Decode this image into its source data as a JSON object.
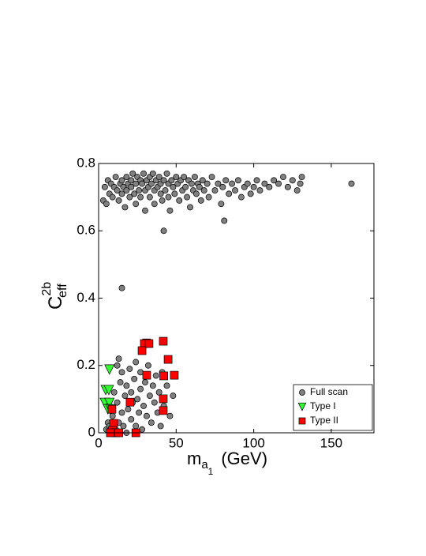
{
  "chart_data": {
    "type": "scatter",
    "xlabel": {
      "base": "m",
      "sub": "a",
      "subsub": "1",
      "unit": "(GeV)"
    },
    "ylabel": {
      "base": "C",
      "sup": "2b",
      "sub": "eff"
    },
    "xlim": [
      0,
      177.5
    ],
    "ylim": [
      0,
      0.8
    ],
    "xticks": [
      0,
      50,
      100,
      150
    ],
    "yticks": [
      0,
      0.2,
      0.4,
      0.6,
      0.8
    ],
    "legend": "lower right",
    "series": [
      {
        "name": "Full scan",
        "color": "#808080",
        "marker": "circle",
        "x": [
          3,
          4,
          5,
          6,
          7,
          8,
          9,
          10,
          11,
          12,
          13,
          14,
          15,
          15,
          16,
          17,
          18,
          18,
          19,
          20,
          21,
          21,
          22,
          23,
          24,
          24,
          25,
          26,
          27,
          27,
          28,
          29,
          30,
          30,
          31,
          32,
          33,
          33,
          34,
          35,
          36,
          36,
          37,
          38,
          39,
          40,
          40,
          41,
          42,
          43,
          44,
          45,
          45,
          46,
          47,
          48,
          49,
          50,
          51,
          52,
          53,
          54,
          55,
          56,
          57,
          58,
          59,
          60,
          61,
          62,
          63,
          64,
          65,
          66,
          67,
          68,
          70,
          71,
          73,
          75,
          77,
          79,
          80,
          81,
          82,
          84,
          86,
          88,
          90,
          92,
          94,
          96,
          98,
          100,
          102,
          104,
          107,
          110,
          113,
          116,
          119,
          122,
          125,
          128,
          130,
          131,
          163,
          42,
          15,
          5,
          6,
          7,
          8,
          9,
          10,
          11,
          12,
          12,
          13,
          14,
          15,
          15,
          16,
          17,
          18,
          18,
          19,
          20,
          21,
          21,
          22,
          23,
          24,
          24,
          25,
          26,
          27,
          27,
          28,
          29,
          30,
          31,
          32,
          33,
          34,
          35,
          36,
          37,
          38,
          39,
          40,
          41,
          42,
          44,
          46,
          48,
          13,
          10,
          14
        ],
        "values": [
          0.69,
          0.73,
          0.68,
          0.75,
          0.71,
          0.74,
          0.7,
          0.73,
          0.76,
          0.72,
          0.69,
          0.74,
          0.75,
          0.71,
          0.73,
          0.67,
          0.76,
          0.72,
          0.74,
          0.7,
          0.75,
          0.73,
          0.77,
          0.71,
          0.74,
          0.68,
          0.76,
          0.72,
          0.75,
          0.7,
          0.74,
          0.77,
          0.72,
          0.66,
          0.75,
          0.73,
          0.76,
          0.7,
          0.74,
          0.77,
          0.72,
          0.68,
          0.75,
          0.73,
          0.76,
          0.71,
          0.74,
          0.69,
          0.75,
          0.72,
          0.77,
          0.74,
          0.7,
          0.66,
          0.75,
          0.73,
          0.71,
          0.76,
          0.74,
          0.69,
          0.75,
          0.72,
          0.76,
          0.73,
          0.7,
          0.75,
          0.67,
          0.74,
          0.72,
          0.76,
          0.71,
          0.74,
          0.73,
          0.69,
          0.75,
          0.72,
          0.74,
          0.7,
          0.76,
          0.72,
          0.74,
          0.68,
          0.73,
          0.63,
          0.75,
          0.71,
          0.74,
          0.72,
          0.75,
          0.7,
          0.73,
          0.74,
          0.71,
          0.73,
          0.75,
          0.72,
          0.74,
          0.73,
          0.75,
          0.74,
          0.76,
          0.73,
          0.75,
          0.72,
          0.74,
          0.76,
          0.74,
          0.6,
          0.43,
          0.01,
          0.03,
          0.02,
          0.0,
          0.05,
          0.12,
          0.01,
          0.09,
          0.2,
          0.03,
          0.15,
          0.06,
          0.18,
          0.02,
          0.11,
          0.0,
          0.14,
          0.07,
          0.19,
          0.04,
          0.12,
          0.09,
          0.16,
          0.02,
          0.21,
          0.1,
          0.06,
          0.13,
          0.18,
          0.01,
          0.08,
          0.15,
          0.05,
          0.2,
          0.11,
          0.03,
          0.14,
          0.09,
          0.17,
          0.06,
          0.12,
          0.02,
          0.18,
          0.08,
          0.14,
          0.05,
          0.11,
          0.22,
          0.0,
          0.0
        ]
      },
      {
        "name": "Type I",
        "color": "#33ff33",
        "marker": "triangle-down",
        "x": [
          7,
          4.6,
          6.6,
          4,
          7,
          6,
          7.6
        ],
        "values": [
          0.188,
          0.127,
          0.127,
          0.089,
          0.089,
          0.07,
          0.07
        ]
      },
      {
        "name": "Type II",
        "color": "#ff0000",
        "marker": "square",
        "x": [
          31,
          29.5,
          32.5,
          41.7,
          28,
          44.8,
          48.8,
          31,
          42,
          41.7,
          20.3,
          41.7,
          8.6,
          9.7,
          9,
          11,
          13,
          24,
          7.6
        ],
        "values": [
          0.267,
          0.265,
          0.265,
          0.272,
          0.244,
          0.218,
          0.171,
          0.171,
          0.169,
          0.101,
          0.091,
          0.066,
          0.07,
          0.028,
          0.007,
          0,
          0,
          0,
          0
        ]
      }
    ]
  }
}
